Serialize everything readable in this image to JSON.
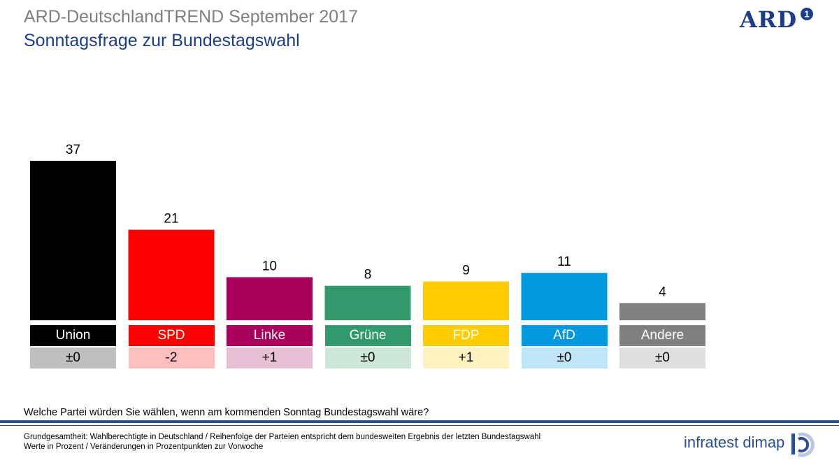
{
  "header": {
    "title": "ARD-DeutschlandTREND September 2017",
    "subtitle": "Sonntagsfrage zur Bundestagswahl",
    "logo_text": "ARD",
    "logo_mark": "1"
  },
  "colors": {
    "title_gray": "#7f7f7f",
    "subtitle_blue": "#1c3c8c",
    "rule_blue": "#2b4f96"
  },
  "chart_data": {
    "type": "bar",
    "title": "Sonntagsfrage zur Bundestagswahl",
    "xlabel": "",
    "ylabel": "",
    "ylim": [
      0,
      40
    ],
    "grid": false,
    "categories": [
      "Union",
      "SPD",
      "Linke",
      "Grüne",
      "FDP",
      "AfD",
      "Andere"
    ],
    "values": [
      37,
      21,
      10,
      8,
      9,
      11,
      4
    ],
    "changes": [
      "±0",
      "-2",
      "+1",
      "±0",
      "+1",
      "±0",
      "±0"
    ],
    "colors": [
      "#000000",
      "#ff0000",
      "#a8005a",
      "#31996a",
      "#ffcc00",
      "#0099e0",
      "#808080"
    ],
    "change_colors": [
      "#bfbfbf",
      "#ffbfbf",
      "#e9bfd6",
      "#cce5d9",
      "#fff2bf",
      "#bfe5f7",
      "#dfdfdf"
    ]
  },
  "question": "Welche Partei würden Sie wählen, wenn am kommenden Sonntag Bundestagswahl wäre?",
  "footer": {
    "line1": "Grundgesamtheit:  Wahlberechtigte  in Deutschland   / Reihenfolge  der Parteien  entspricht dem bundesweiten Ergebnis der letzten Bundestagswahl",
    "line2": "Werte in Prozent / Veränderungen   in Prozentpunkten zur Vorwoche",
    "brand": "infratest dimap"
  }
}
